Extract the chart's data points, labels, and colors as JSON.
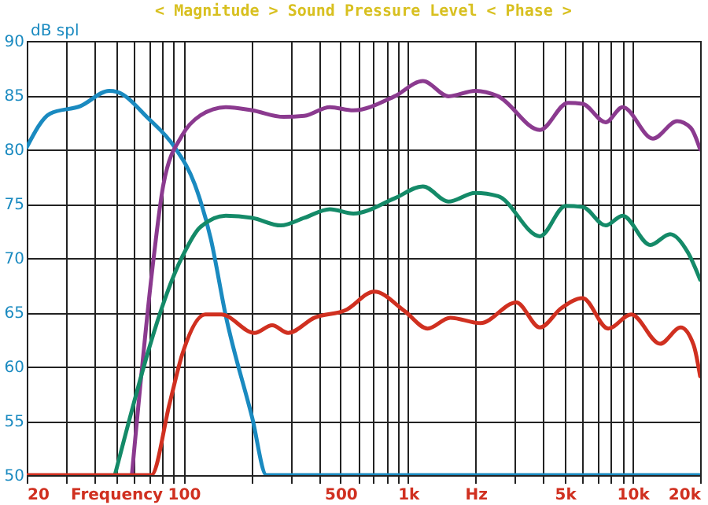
{
  "chart_data": {
    "type": "line",
    "title": "< Magnitude >   Sound Pressure Level   < Phase >",
    "ylabel": "dB spl",
    "log": "x",
    "grid": true,
    "line_style": "solid",
    "xlim": [
      20,
      20000
    ],
    "ylim": [
      50,
      90
    ],
    "xticks": [
      20,
      {
        "value": 30,
        "label": null
      },
      {
        "value": 40,
        "label": null
      },
      {
        "value": 50,
        "label": "Frequency"
      },
      {
        "value": 60,
        "label": null
      },
      {
        "value": 70,
        "label": null
      },
      {
        "value": 80,
        "label": null
      },
      {
        "value": 90,
        "label": null
      },
      100,
      {
        "value": 200,
        "label": null
      },
      {
        "value": 300,
        "label": null
      },
      {
        "value": 400,
        "label": null
      },
      500,
      {
        "value": 600,
        "label": null
      },
      {
        "value": 700,
        "label": null
      },
      {
        "value": 800,
        "label": null
      },
      {
        "value": 900,
        "label": null
      },
      {
        "value": 1000,
        "label": "1k"
      },
      {
        "value": 2000,
        "label": "Hz"
      },
      {
        "value": 3000,
        "label": null
      },
      {
        "value": 4000,
        "label": null
      },
      {
        "value": 5000,
        "label": "5k"
      },
      {
        "value": 6000,
        "label": null
      },
      {
        "value": 7000,
        "label": null
      },
      {
        "value": 8000,
        "label": null
      },
      {
        "value": 9000,
        "label": null
      },
      {
        "value": 10000,
        "label": "10k"
      },
      {
        "value": 20000,
        "label": "20k"
      }
    ],
    "yticks": [
      50,
      55,
      60,
      65,
      70,
      75,
      80,
      85,
      90
    ],
    "series": [
      {
        "color": "#1a8ac0",
        "x": [
          20,
          25.4,
          34.7,
          46.6,
          50.5,
          69.3,
          91.2,
          112,
          132,
          154,
          202,
          234,
          20000
        ],
        "values": [
          80.2,
          83.3,
          84.0,
          85.4,
          85.3,
          82.9,
          80.2,
          76.8,
          71.8,
          64.7,
          55.3,
          50,
          50
        ]
      },
      {
        "color": "#8b3a8f",
        "x": [
          58.8,
          73.6,
          81.3,
          98.5,
          118,
          154,
          202,
          279,
          345,
          448,
          570,
          871,
          1164,
          1515,
          1990,
          2518,
          3866,
          5160,
          5990,
          7590,
          9030,
          12320,
          15790,
          18140,
          20000
        ],
        "values": [
          50,
          70.1,
          76.8,
          81.3,
          83.1,
          83.9,
          83.6,
          83.0,
          83.1,
          83.9,
          83.6,
          84.9,
          86.3,
          84.9,
          85.4,
          84.9,
          81.8,
          84.3,
          84.2,
          82.5,
          83.9,
          81.0,
          82.6,
          82.0,
          80.0
        ]
      },
      {
        "color": "#148a68",
        "x": [
          49.4,
          98.5,
          118,
          154,
          202,
          271,
          345,
          448,
          570,
          871,
          1164,
          1515,
          1990,
          2518,
          3866,
          5030,
          5990,
          7590,
          9030,
          12000,
          14700,
          17650,
          20000
        ],
        "values": [
          50,
          70.1,
          72.8,
          73.9,
          73.7,
          73.0,
          73.7,
          74.5,
          74.1,
          75.5,
          76.6,
          75.2,
          76.0,
          75.7,
          72.0,
          74.8,
          74.7,
          73.0,
          73.9,
          71.2,
          72.2,
          70.5,
          68.0
        ]
      },
      {
        "color": "#d03020",
        "x": [
          20,
          71.8,
          86.6,
          98.5,
          125,
          147,
          207,
          248,
          292,
          383,
          527,
          707,
          966,
          1222,
          1541,
          2102,
          3034,
          3866,
          4825,
          5991,
          7787,
          9870,
          13270,
          16380,
          18700,
          20000
        ],
        "values": [
          50,
          50,
          56.6,
          61.1,
          64.8,
          64.8,
          63.1,
          63.8,
          63.1,
          64.5,
          65.2,
          66.9,
          65.1,
          63.5,
          64.5,
          64.0,
          65.9,
          63.6,
          65.4,
          66.3,
          63.5,
          64.8,
          62.1,
          63.6,
          62.0,
          59.1
        ]
      }
    ]
  }
}
